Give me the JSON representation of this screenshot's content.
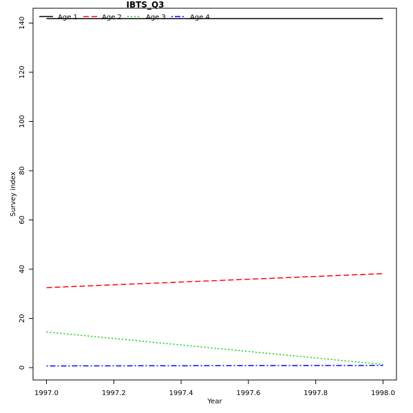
{
  "chart_data": {
    "type": "line",
    "title": "IBTS_Q3",
    "xlabel": "Year",
    "ylabel": "Survey index",
    "xlim": [
      1996.96,
      1998.04
    ],
    "ylim": [
      -5,
      146
    ],
    "xticks": [
      1997.0,
      1997.2,
      1997.4,
      1997.6,
      1997.8,
      1998.0
    ],
    "xtick_labels": [
      "1997.0",
      "1997.2",
      "1997.4",
      "1997.6",
      "1997.8",
      "1998.0"
    ],
    "yticks": [
      0,
      20,
      40,
      60,
      80,
      100,
      120,
      140
    ],
    "ytick_labels": [
      "0",
      "20",
      "40",
      "60",
      "80",
      "100",
      "120",
      "140"
    ],
    "grid": false,
    "legend_position": "top-left",
    "x": [
      1997.0,
      1998.0
    ],
    "series": [
      {
        "name": "Age 1",
        "values": [
          141.8,
          141.8
        ],
        "color": "#000000",
        "style": "solid"
      },
      {
        "name": "Age 2",
        "values": [
          32.5,
          38.2
        ],
        "color": "#ff0000",
        "style": "dashed"
      },
      {
        "name": "Age 3",
        "values": [
          14.5,
          1.3
        ],
        "color": "#00cd00",
        "style": "dotted"
      },
      {
        "name": "Age 4",
        "values": [
          0.7,
          0.9
        ],
        "color": "#0000ff",
        "style": "dotdash"
      }
    ]
  }
}
